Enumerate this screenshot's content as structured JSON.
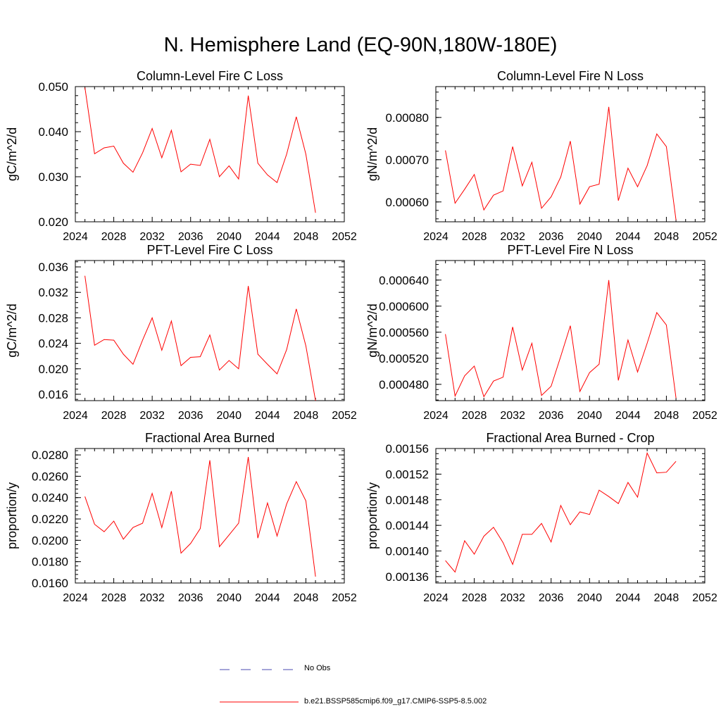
{
  "title": "N. Hemisphere Land (EQ-90N,180W-180E)",
  "legend": {
    "items": [
      {
        "label": "No Obs",
        "color": "#4a4ab0",
        "style": "dashed"
      },
      {
        "label": "b.e21.BSSP585cmip6.f09_g17.CMIP6-SSP5-8.5.002",
        "color": "#ff0000",
        "style": "solid"
      }
    ]
  },
  "chart_data": [
    {
      "type": "line",
      "title": "Column-Level Fire C Loss",
      "xlabel": "",
      "ylabel": "gC/m^2/d",
      "xlim": [
        2024,
        2052
      ],
      "ylim": [
        0.02,
        0.05
      ],
      "x_ticks": [
        "2024",
        "2028",
        "2032",
        "2036",
        "2040",
        "2044",
        "2048",
        "2052"
      ],
      "y_ticks": [
        "0.020",
        "0.030",
        "0.040",
        "0.050"
      ],
      "grid": false,
      "series": [
        {
          "color": "#ff0000",
          "x": [
            2025,
            2026,
            2027,
            2028,
            2029,
            2030,
            2031,
            2032,
            2033,
            2034,
            2035,
            2036,
            2037,
            2038,
            2039,
            2040,
            2041,
            2042,
            2043,
            2044,
            2045,
            2046,
            2047,
            2048,
            2049
          ],
          "values": [
            0.0498,
            0.0351,
            0.0364,
            0.0368,
            0.033,
            0.031,
            0.0353,
            0.0407,
            0.0342,
            0.0403,
            0.0311,
            0.0328,
            0.0325,
            0.0383,
            0.03,
            0.0324,
            0.0295,
            0.048,
            0.033,
            0.0304,
            0.0287,
            0.035,
            0.0433,
            0.035,
            0.022
          ]
        }
      ]
    },
    {
      "type": "line",
      "title": "Column-Level Fire N Loss",
      "xlabel": "",
      "ylabel": "gN/m^2/d",
      "xlim": [
        2024,
        2052
      ],
      "ylim": [
        0.000553,
        0.000873
      ],
      "x_ticks": [
        "2024",
        "2028",
        "2032",
        "2036",
        "2040",
        "2044",
        "2048",
        "2052"
      ],
      "y_ticks": [
        "0.00060",
        "0.00070",
        "0.00080"
      ],
      "grid": false,
      "series": [
        {
          "color": "#ff0000",
          "x": [
            2025,
            2026,
            2027,
            2028,
            2029,
            2030,
            2031,
            2032,
            2033,
            2034,
            2035,
            2036,
            2037,
            2038,
            2039,
            2040,
            2041,
            2042,
            2043,
            2044,
            2045,
            2046,
            2047,
            2048,
            2049
          ],
          "values": [
            0.000722,
            0.000597,
            0.00063,
            0.000665,
            0.000581,
            0.000616,
            0.000626,
            0.000731,
            0.000638,
            0.000694,
            0.000585,
            0.000612,
            0.000659,
            0.000744,
            0.000595,
            0.000636,
            0.000642,
            0.000825,
            0.000603,
            0.00068,
            0.000636,
            0.000686,
            0.000761,
            0.000731,
            0.000557
          ]
        }
      ]
    },
    {
      "type": "line",
      "title": "PFT-Level Fire C Loss",
      "xlabel": "",
      "ylabel": "gC/m^2/d",
      "xlim": [
        2024,
        2052
      ],
      "ylim": [
        0.015,
        0.037
      ],
      "x_ticks": [
        "2024",
        "2028",
        "2032",
        "2036",
        "2040",
        "2044",
        "2048",
        "2052"
      ],
      "y_ticks": [
        "0.016",
        "0.020",
        "0.024",
        "0.028",
        "0.032",
        "0.036"
      ],
      "grid": false,
      "series": [
        {
          "color": "#ff0000",
          "x": [
            2025,
            2026,
            2027,
            2028,
            2029,
            2030,
            2031,
            2032,
            2033,
            2034,
            2035,
            2036,
            2037,
            2038,
            2039,
            2040,
            2041,
            2042,
            2043,
            2044,
            2045,
            2046,
            2047,
            2048,
            2049
          ],
          "values": [
            0.0346,
            0.0237,
            0.0246,
            0.0245,
            0.0223,
            0.0207,
            0.0245,
            0.028,
            0.0229,
            0.0275,
            0.0205,
            0.0218,
            0.0219,
            0.0253,
            0.0198,
            0.0213,
            0.02,
            0.033,
            0.0223,
            0.0207,
            0.0192,
            0.023,
            0.0294,
            0.0236,
            0.015
          ]
        }
      ]
    },
    {
      "type": "line",
      "title": "PFT-Level Fire N Loss",
      "xlabel": "",
      "ylabel": "gN/m^2/d",
      "xlim": [
        2024,
        2052
      ],
      "ylim": [
        0.000455,
        0.00067
      ],
      "x_ticks": [
        "2024",
        "2028",
        "2032",
        "2036",
        "2040",
        "2044",
        "2048",
        "2052"
      ],
      "y_ticks": [
        "0.000480",
        "0.000520",
        "0.000560",
        "0.000600",
        "0.000640"
      ],
      "grid": false,
      "series": [
        {
          "color": "#ff0000",
          "x": [
            2025,
            2026,
            2027,
            2028,
            2029,
            2030,
            2031,
            2032,
            2033,
            2034,
            2035,
            2036,
            2037,
            2038,
            2039,
            2040,
            2041,
            2042,
            2043,
            2044,
            2045,
            2046,
            2047,
            2048,
            2049
          ],
          "values": [
            0.000557,
            0.000462,
            0.000493,
            0.000508,
            0.000461,
            0.000485,
            0.000491,
            0.000568,
            0.000502,
            0.000543,
            0.000463,
            0.000477,
            0.000523,
            0.00057,
            0.000469,
            0.000498,
            0.000511,
            0.00064,
            0.000486,
            0.000548,
            0.000499,
            0.000543,
            0.00059,
            0.000571,
            0.000459
          ]
        }
      ]
    },
    {
      "type": "line",
      "title": "Fractional Area Burned",
      "xlabel": "",
      "ylabel": "proportion/y",
      "xlim": [
        2024,
        2052
      ],
      "ylim": [
        0.016,
        0.0286
      ],
      "x_ticks": [
        "2024",
        "2028",
        "2032",
        "2036",
        "2040",
        "2044",
        "2048",
        "2052"
      ],
      "y_ticks": [
        "0.0160",
        "0.0180",
        "0.0200",
        "0.0220",
        "0.0240",
        "0.0260",
        "0.0280"
      ],
      "grid": false,
      "series": [
        {
          "color": "#ff0000",
          "x": [
            2025,
            2026,
            2027,
            2028,
            2029,
            2030,
            2031,
            2032,
            2033,
            2034,
            2035,
            2036,
            2037,
            2038,
            2039,
            2040,
            2041,
            2042,
            2043,
            2044,
            2045,
            2046,
            2047,
            2048,
            2049
          ],
          "values": [
            0.0241,
            0.0215,
            0.0208,
            0.0218,
            0.0201,
            0.0212,
            0.0216,
            0.0244,
            0.0212,
            0.0246,
            0.0188,
            0.0197,
            0.0211,
            0.0275,
            0.0194,
            0.0205,
            0.0216,
            0.0278,
            0.0202,
            0.0235,
            0.0204,
            0.0234,
            0.0255,
            0.0237,
            0.0166
          ]
        }
      ]
    },
    {
      "type": "line",
      "title": "Fractional Area Burned - Crop",
      "xlabel": "",
      "ylabel": "proportion/y",
      "xlim": [
        2024,
        2052
      ],
      "ylim": [
        0.00135,
        0.00156
      ],
      "x_ticks": [
        "2024",
        "2028",
        "2032",
        "2036",
        "2040",
        "2044",
        "2048",
        "2052"
      ],
      "y_ticks": [
        "0.00136",
        "0.00140",
        "0.00144",
        "0.00148",
        "0.00152",
        "0.00156"
      ],
      "grid": false,
      "series": [
        {
          "color": "#ff0000",
          "x": [
            2025,
            2026,
            2027,
            2028,
            2029,
            2030,
            2031,
            2032,
            2033,
            2034,
            2035,
            2036,
            2037,
            2038,
            2039,
            2040,
            2041,
            2042,
            2043,
            2044,
            2045,
            2046,
            2047,
            2048,
            2049
          ],
          "values": [
            0.001385,
            0.001367,
            0.001416,
            0.001395,
            0.001423,
            0.001437,
            0.001413,
            0.001379,
            0.001426,
            0.001426,
            0.001443,
            0.001414,
            0.001471,
            0.001441,
            0.001461,
            0.001457,
            0.001495,
            0.001485,
            0.001474,
            0.001507,
            0.001484,
            0.001553,
            0.001522,
            0.001523,
            0.00154
          ]
        }
      ]
    }
  ]
}
